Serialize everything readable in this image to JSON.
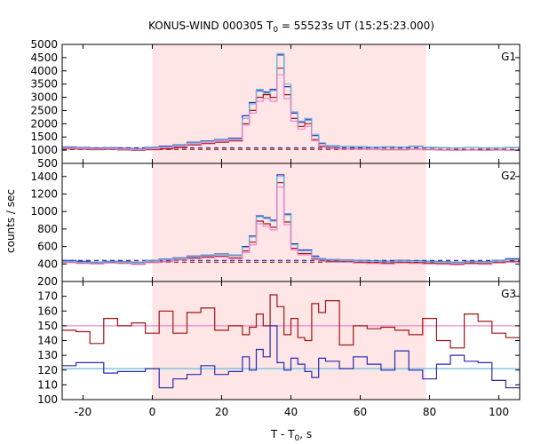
{
  "chart_data": {
    "type": "line",
    "title_prefix": "KONUS-WIND 000305 T",
    "title_sub": "0",
    "title_suffix": " = 55523s UT (15:25:23.000)",
    "xlabel_prefix": "T - T",
    "xlabel_sub": "0",
    "xlabel_suffix": ", s",
    "ylabel": "counts / sec",
    "xlim": [
      -26,
      106
    ],
    "x_ticks": [
      -20,
      0,
      20,
      40,
      60,
      80,
      100
    ],
    "shaded_interval": [
      0,
      79
    ],
    "colors": {
      "red": "#a01515",
      "blue": "#2a2ab0",
      "lightblue": "#66bbdd",
      "pink": "#ee88cc",
      "shade": "#ffe6e6"
    },
    "bins": {
      "x_start": [
        -26,
        -22,
        -18,
        -14,
        -10,
        -6,
        -2,
        2,
        6,
        10,
        14,
        18,
        22,
        26,
        28,
        30,
        32,
        34,
        36,
        38,
        40,
        42,
        44,
        46,
        48,
        50,
        54,
        58,
        62,
        66,
        70,
        74,
        78,
        82,
        86,
        90,
        94,
        98,
        102
      ],
      "x_end": [
        -22,
        -18,
        -14,
        -10,
        -6,
        -2,
        2,
        6,
        10,
        14,
        18,
        22,
        26,
        28,
        30,
        32,
        34,
        36,
        38,
        40,
        42,
        44,
        46,
        48,
        50,
        54,
        58,
        62,
        66,
        70,
        74,
        78,
        82,
        86,
        90,
        94,
        98,
        102,
        106
      ]
    },
    "panels": [
      {
        "label": "G1",
        "ylim": [
          500,
          5000
        ],
        "y_ticks": [
          500,
          1000,
          1500,
          2000,
          2500,
          3000,
          3500,
          4000,
          4500,
          5000
        ],
        "hidden_top_tick": false,
        "series": [
          {
            "color": "red",
            "values": [
              1050,
              1040,
              1020,
              1030,
              1010,
              1000,
              1020,
              1050,
              1100,
              1200,
              1250,
              1300,
              1350,
              2000,
              2500,
              3000,
              3100,
              3000,
              4100,
              3100,
              2200,
              1900,
              2000,
              1400,
              1150,
              1080,
              1050,
              1040,
              1030,
              1020,
              1020,
              1030,
              1020,
              1010,
              1000,
              1010,
              1000,
              1010,
              1000
            ]
          },
          {
            "color": "blue",
            "values": [
              1120,
              1100,
              1080,
              1090,
              1070,
              1060,
              1100,
              1150,
              1200,
              1300,
              1350,
              1400,
              1450,
              2300,
              2800,
              3250,
              3200,
              3300,
              4600,
              3400,
              2400,
              2050,
              2150,
              1550,
              1250,
              1150,
              1130,
              1120,
              1110,
              1120,
              1110,
              1140,
              1100,
              1090,
              1080,
              1090,
              1080,
              1080,
              1100
            ]
          },
          {
            "color": "lightblue",
            "values": [
              1100,
              1080,
              1060,
              1070,
              1050,
              1040,
              1080,
              1120,
              1180,
              1280,
              1330,
              1380,
              1420,
              2200,
              2750,
              3300,
              3150,
              3250,
              4650,
              3500,
              2450,
              2100,
              2200,
              1600,
              1280,
              1170,
              1140,
              1130,
              1120,
              1110,
              1120,
              1130,
              1110,
              1100,
              1080,
              1090,
              1080,
              1090,
              1090
            ]
          },
          {
            "color": "pink",
            "values": [
              1070,
              1060,
              1040,
              1050,
              1030,
              1020,
              1050,
              1090,
              1140,
              1240,
              1290,
              1340,
              1390,
              1950,
              2400,
              2850,
              2950,
              2850,
              3850,
              2950,
              2100,
              1800,
              1900,
              1350,
              1120,
              1060,
              1040,
              1030,
              1020,
              1010,
              1010,
              1020,
              1010,
              1000,
              990,
              1000,
              990,
              1000,
              990
            ]
          }
        ],
        "background_levels": [
          {
            "color": "red",
            "value": 1030,
            "dashed": true
          },
          {
            "color": "blue",
            "value": 1090,
            "dashed": true
          }
        ]
      },
      {
        "label": "G2",
        "ylim": [
          200,
          1550
        ],
        "y_ticks": [
          200,
          400,
          600,
          800,
          1000,
          1200,
          1400
        ],
        "hidden_top_tick": false,
        "series": [
          {
            "color": "red",
            "values": [
              420,
              410,
              405,
              415,
              410,
              400,
              420,
              430,
              450,
              470,
              480,
              490,
              470,
              550,
              650,
              890,
              860,
              820,
              1330,
              880,
              580,
              520,
              520,
              460,
              440,
              430,
              430,
              420,
              415,
              410,
              420,
              415,
              410,
              405,
              400,
              410,
              405,
              420,
              430
            ]
          },
          {
            "color": "blue",
            "values": [
              440,
              430,
              420,
              430,
              425,
              420,
              440,
              455,
              470,
              490,
              500,
              515,
              500,
              600,
              720,
              950,
              930,
              900,
              1420,
              970,
              630,
              560,
              560,
              490,
              460,
              450,
              445,
              440,
              435,
              430,
              440,
              435,
              430,
              425,
              420,
              430,
              425,
              440,
              460
            ]
          },
          {
            "color": "lightblue",
            "values": [
              430,
              420,
              415,
              425,
              420,
              415,
              435,
              450,
              465,
              485,
              495,
              510,
              495,
              590,
              710,
              940,
              920,
              890,
              1400,
              960,
              620,
              550,
              550,
              480,
              455,
              445,
              440,
              435,
              430,
              425,
              435,
              430,
              425,
              420,
              415,
              425,
              420,
              435,
              450
            ]
          },
          {
            "color": "pink",
            "values": [
              415,
              405,
              400,
              410,
              405,
              395,
              415,
              425,
              445,
              460,
              470,
              480,
              460,
              530,
              620,
              860,
              830,
              790,
              1280,
              850,
              560,
              505,
              505,
              450,
              430,
              420,
              420,
              410,
              405,
              400,
              410,
              405,
              400,
              395,
              390,
              400,
              395,
              410,
              420
            ]
          }
        ],
        "background_levels": [
          {
            "color": "red",
            "value": 420,
            "dashed": true
          },
          {
            "color": "blue",
            "value": 440,
            "dashed": true
          }
        ]
      },
      {
        "label": "G3",
        "ylim": [
          100,
          180
        ],
        "y_ticks": [
          100,
          110,
          120,
          130,
          140,
          150,
          160,
          170
        ],
        "hidden_top_tick": false,
        "series": [
          {
            "color": "red",
            "values": [
              147,
              146,
              138,
              155,
              150,
              152,
              145,
              160,
              145,
              159,
              162,
              147,
              150,
              144,
              149,
              158,
              150,
              171,
              163,
              144,
              155,
              142,
              140,
              165,
              159,
              167,
              137,
              150,
              148,
              149,
              147,
              144,
              155,
              140,
              135,
              158,
              153,
              145,
              142
            ]
          },
          {
            "color": "blue",
            "values": [
              123,
              125,
              125,
              118,
              119,
              119,
              121,
              108,
              114,
              117,
              123,
              117,
              119,
              129,
              120,
              134,
              129,
              150,
              125,
              120,
              128,
              124,
              119,
              115,
              128,
              126,
              121,
              129,
              124,
              120,
              133,
              120,
              114,
              124,
              130,
              126,
              125,
              113,
              108
            ]
          }
        ],
        "background_levels": [
          {
            "color": "pink",
            "value": 150,
            "dashed": false
          },
          {
            "color": "lightblue",
            "value": 121,
            "dashed": false
          }
        ]
      }
    ]
  }
}
